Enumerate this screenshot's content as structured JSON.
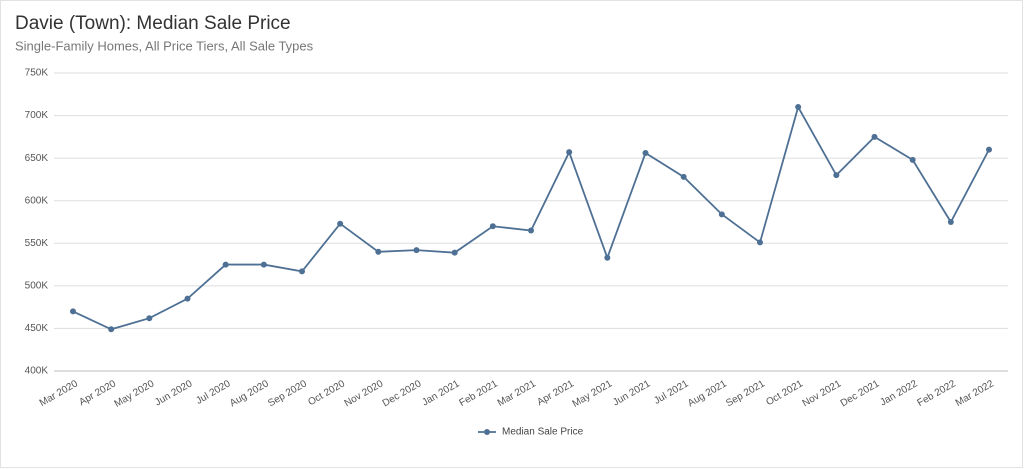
{
  "chart_data": {
    "type": "line",
    "title": "Davie (Town): Median Sale Price",
    "subtitle": "Single-Family Homes, All Price Tiers, All Sale Types",
    "categories": [
      "Mar 2020",
      "Apr 2020",
      "May 2020",
      "Jun 2020",
      "Jul 2020",
      "Aug 2020",
      "Sep 2020",
      "Oct 2020",
      "Nov 2020",
      "Dec 2020",
      "Jan 2021",
      "Feb 2021",
      "Mar 2021",
      "Apr 2021",
      "May 2021",
      "Jun 2021",
      "Jul 2021",
      "Aug 2021",
      "Sep 2021",
      "Oct 2021",
      "Nov 2021",
      "Dec 2021",
      "Jan 2022",
      "Feb 2022",
      "Mar 2022"
    ],
    "series": [
      {
        "name": "Median Sale Price",
        "color": "#4e7094",
        "values": [
          470000,
          449000,
          462000,
          485000,
          525000,
          525000,
          517000,
          573000,
          540000,
          542000,
          539000,
          570000,
          565000,
          657000,
          533000,
          656000,
          628000,
          584000,
          551000,
          710000,
          630000,
          675000,
          648000,
          575000,
          660000
        ]
      }
    ],
    "ylim": [
      400000,
      750000
    ],
    "yticks": [
      {
        "value": 400000,
        "label": "400K"
      },
      {
        "value": 450000,
        "label": "450K"
      },
      {
        "value": 500000,
        "label": "500K"
      },
      {
        "value": 550000,
        "label": "550K"
      },
      {
        "value": 600000,
        "label": "600K"
      },
      {
        "value": 650000,
        "label": "650K"
      },
      {
        "value": 700000,
        "label": "700K"
      },
      {
        "value": 750000,
        "label": "750K"
      }
    ],
    "grid": true
  }
}
